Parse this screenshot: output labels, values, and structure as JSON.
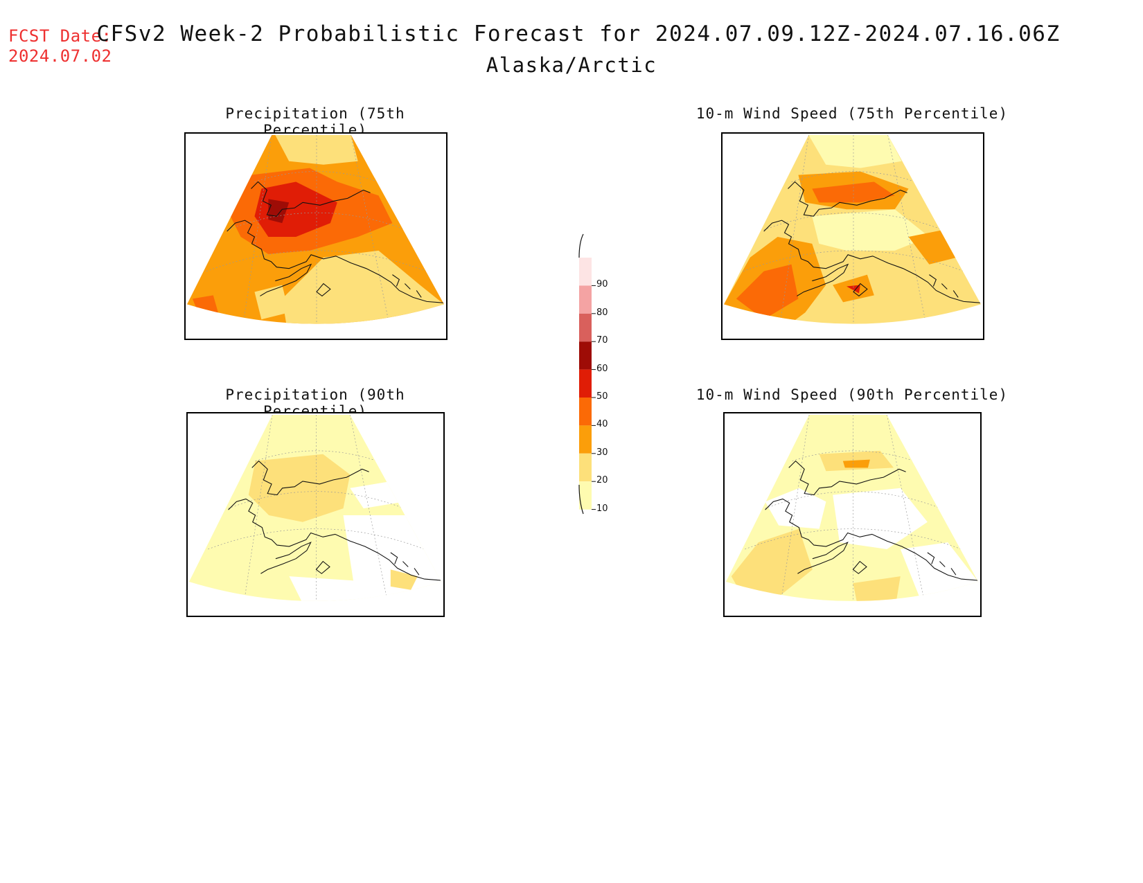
{
  "fcst": {
    "label": "FCST Date:",
    "date": "2024.07.02"
  },
  "title": "CFSv2 Week-2 Probabilistic Forecast for 2024.07.09.12Z-2024.07.16.06Z",
  "subtitle": "Alaska/Arctic",
  "panels": [
    {
      "title": "Precipitation (75th Percentile)",
      "level": "high",
      "variable": "precipitation"
    },
    {
      "title": "10-m Wind Speed (75th Percentile)",
      "level": "high",
      "variable": "wind"
    },
    {
      "title": "Precipitation (90th Percentile)",
      "level": "low",
      "variable": "precipitation"
    },
    {
      "title": "10-m Wind Speed (90th Percentile)",
      "level": "low",
      "variable": "wind"
    }
  ],
  "colorbar": {
    "labels": [
      "90",
      "80",
      "70",
      "60",
      "50",
      "40",
      "30",
      "20",
      "10"
    ],
    "colors": [
      "#fde4e4",
      "#f4a3a3",
      "#d9605c",
      "#9e0c06",
      "#e01d06",
      "#fb6a06",
      "#fb9e0a",
      "#fde07a",
      "#fefbb0"
    ]
  }
}
